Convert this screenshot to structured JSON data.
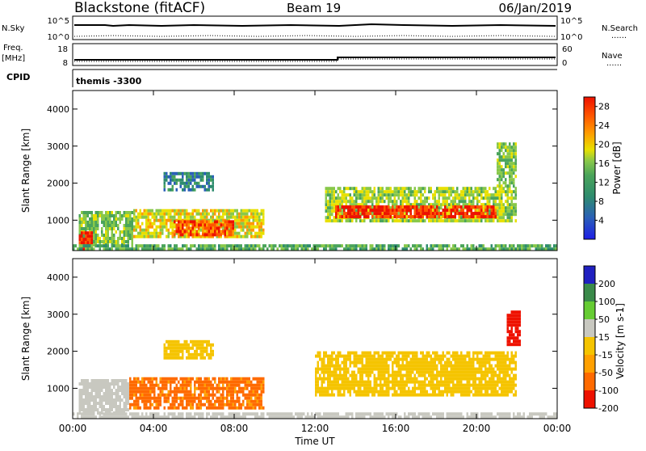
{
  "header": {
    "station": "Blackstone (fitACF)",
    "beam": "Beam 19",
    "date": "06/Jan/2019"
  },
  "top_panels": {
    "nsky_label": "N.Sky",
    "nsearch_label": "N.Search",
    "nsky_ticks": [
      "10^5",
      "10^0"
    ],
    "nsearch_ticks": [
      "10^5",
      "10^0"
    ],
    "freq_label_1": "Freq.",
    "freq_label_2": "[MHz]",
    "freq_ticks": [
      "18",
      "8"
    ],
    "nave_label": "Nave",
    "nave_ticks": [
      "60",
      "0"
    ],
    "cpid_label": "CPID",
    "cpid_value": "themis -3300",
    "dotted_mark": "......"
  },
  "colors": {
    "power_scale": [
      "#1e1ee6",
      "#2a5fb8",
      "#2e8c6e",
      "#4aa45a",
      "#88c84a",
      "#e8e000",
      "#ff9900",
      "#ff5500",
      "#ee1100"
    ],
    "velocity_scale": [
      "#2020c0",
      "#3a8a4a",
      "#66cc33",
      "#c8c8c0",
      "#f5c400",
      "#ffa000",
      "#ff6a00",
      "#ee1100"
    ]
  },
  "chart_data": [
    {
      "type": "heatmap",
      "title": "Power",
      "xlabel": "",
      "ylabel": "Slant Range [km]",
      "x_ticks": [
        "00:00",
        "04:00",
        "08:00",
        "12:00",
        "16:00",
        "20:00",
        "00:00"
      ],
      "x_range_hours": [
        0,
        24
      ],
      "y_ticks": [
        1000,
        2000,
        3000,
        4000
      ],
      "ylim": [
        180,
        4500
      ],
      "colorbar_label": "Power [dB]",
      "colorbar_ticks": [
        4,
        8,
        12,
        16,
        20,
        24,
        28
      ],
      "colorbar_range": [
        0,
        30
      ],
      "regions": [
        {
          "hours": [
            0.3,
            3.0
          ],
          "range_km": [
            300,
            1250
          ],
          "value": 14
        },
        {
          "hours": [
            0.3,
            1.0
          ],
          "range_km": [
            250,
            700
          ],
          "value": 28
        },
        {
          "hours": [
            3.0,
            9.5
          ],
          "range_km": [
            600,
            1300
          ],
          "value": 18
        },
        {
          "hours": [
            5.0,
            8.0
          ],
          "range_km": [
            650,
            1000
          ],
          "value": 25
        },
        {
          "hours": [
            4.5,
            7.0
          ],
          "range_km": [
            1800,
            2300
          ],
          "value": 8
        },
        {
          "hours": [
            12.5,
            22.0
          ],
          "range_km": [
            1000,
            1900
          ],
          "value": 16
        },
        {
          "hours": [
            13.0,
            21.0
          ],
          "range_km": [
            1100,
            1400
          ],
          "value": 27
        },
        {
          "hours": [
            21.0,
            22.0
          ],
          "range_km": [
            1900,
            3100
          ],
          "value": 14
        },
        {
          "hours": [
            0.0,
            24.0
          ],
          "range_km": [
            180,
            350
          ],
          "value": 12
        }
      ]
    },
    {
      "type": "heatmap",
      "title": "Velocity",
      "xlabel": "Time UT",
      "ylabel": "Slant Range [km]",
      "x_ticks": [
        "00:00",
        "04:00",
        "08:00",
        "12:00",
        "16:00",
        "20:00",
        "00:00"
      ],
      "x_range_hours": [
        0,
        24
      ],
      "y_ticks": [
        1000,
        2000,
        3000,
        4000
      ],
      "ylim": [
        180,
        4500
      ],
      "colorbar_label": "Velocity [m s-1]",
      "colorbar_ticks": [
        200,
        100,
        50,
        15,
        -15,
        -50,
        -100,
        -200
      ],
      "colorbar_range": [
        -250,
        250
      ],
      "regions": [
        {
          "hours": [
            0.3,
            2.8
          ],
          "range_km": [
            300,
            1250
          ],
          "value": 30
        },
        {
          "hours": [
            2.8,
            9.5
          ],
          "range_km": [
            500,
            1300
          ],
          "value": -60
        },
        {
          "hours": [
            4.5,
            7.0
          ],
          "range_km": [
            1800,
            2300
          ],
          "value": 0
        },
        {
          "hours": [
            12.0,
            22.0
          ],
          "range_km": [
            800,
            2000
          ],
          "value": 0
        },
        {
          "hours": [
            21.5,
            22.2
          ],
          "range_km": [
            2200,
            3100
          ],
          "value": -150
        },
        {
          "hours": [
            0.0,
            24.0
          ],
          "range_km": [
            180,
            350
          ],
          "value": 30
        }
      ]
    }
  ]
}
